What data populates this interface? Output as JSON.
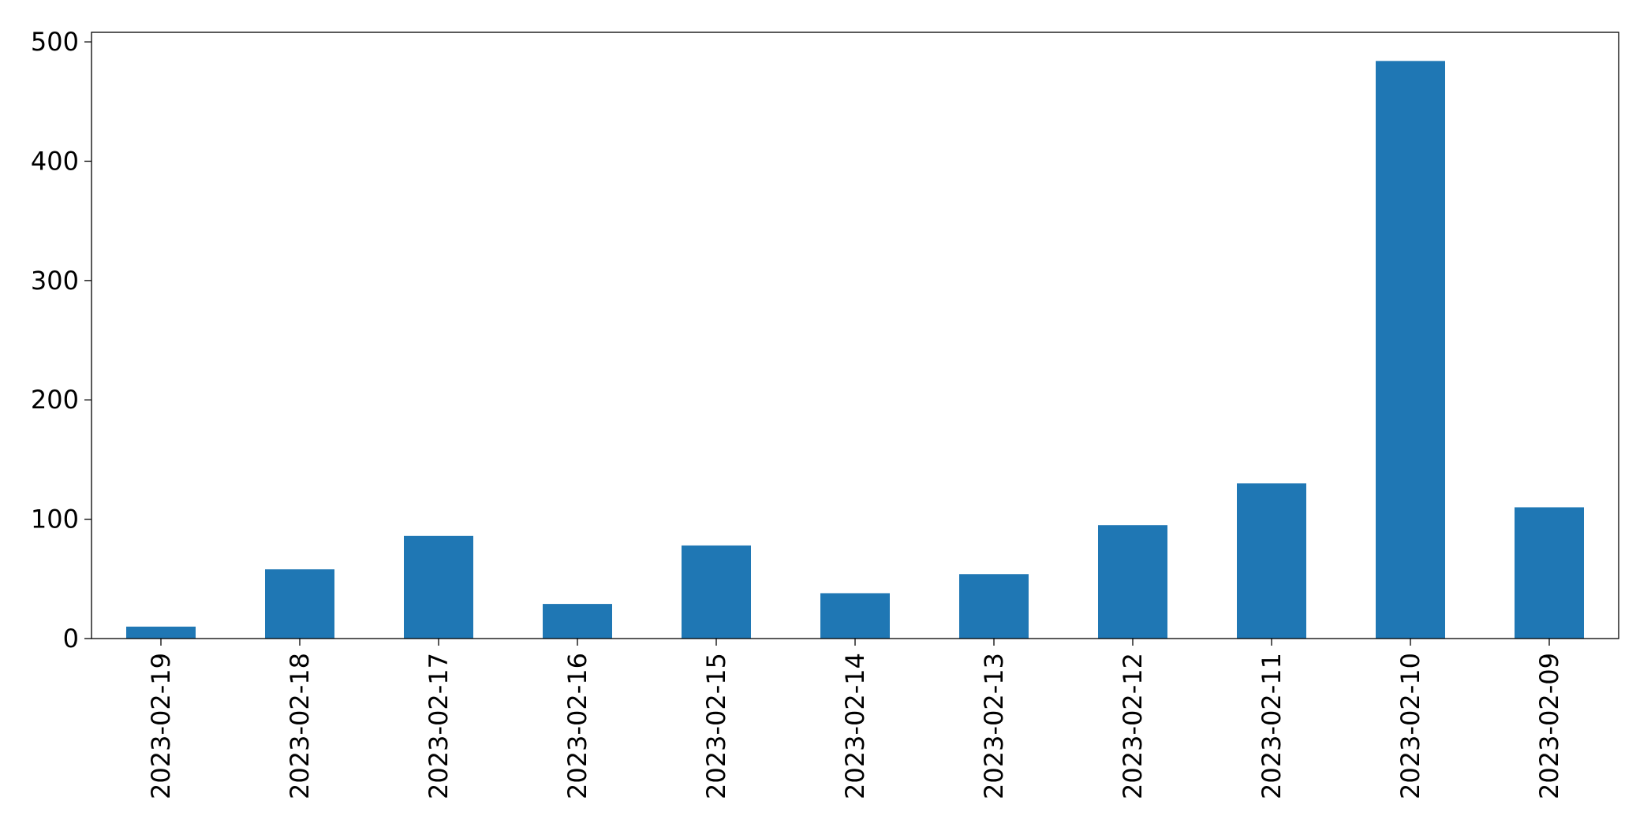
{
  "chart_data": {
    "type": "bar",
    "categories": [
      "2023-02-19",
      "2023-02-18",
      "2023-02-17",
      "2023-02-16",
      "2023-02-15",
      "2023-02-14",
      "2023-02-13",
      "2023-02-12",
      "2023-02-11",
      "2023-02-10",
      "2023-02-09"
    ],
    "values": [
      10,
      58,
      86,
      29,
      78,
      38,
      54,
      95,
      130,
      484,
      110
    ],
    "color": "#1f77b4",
    "ylim": [
      0,
      508
    ],
    "yticks": [
      0,
      100,
      200,
      300,
      400,
      500
    ],
    "grid": false
  }
}
